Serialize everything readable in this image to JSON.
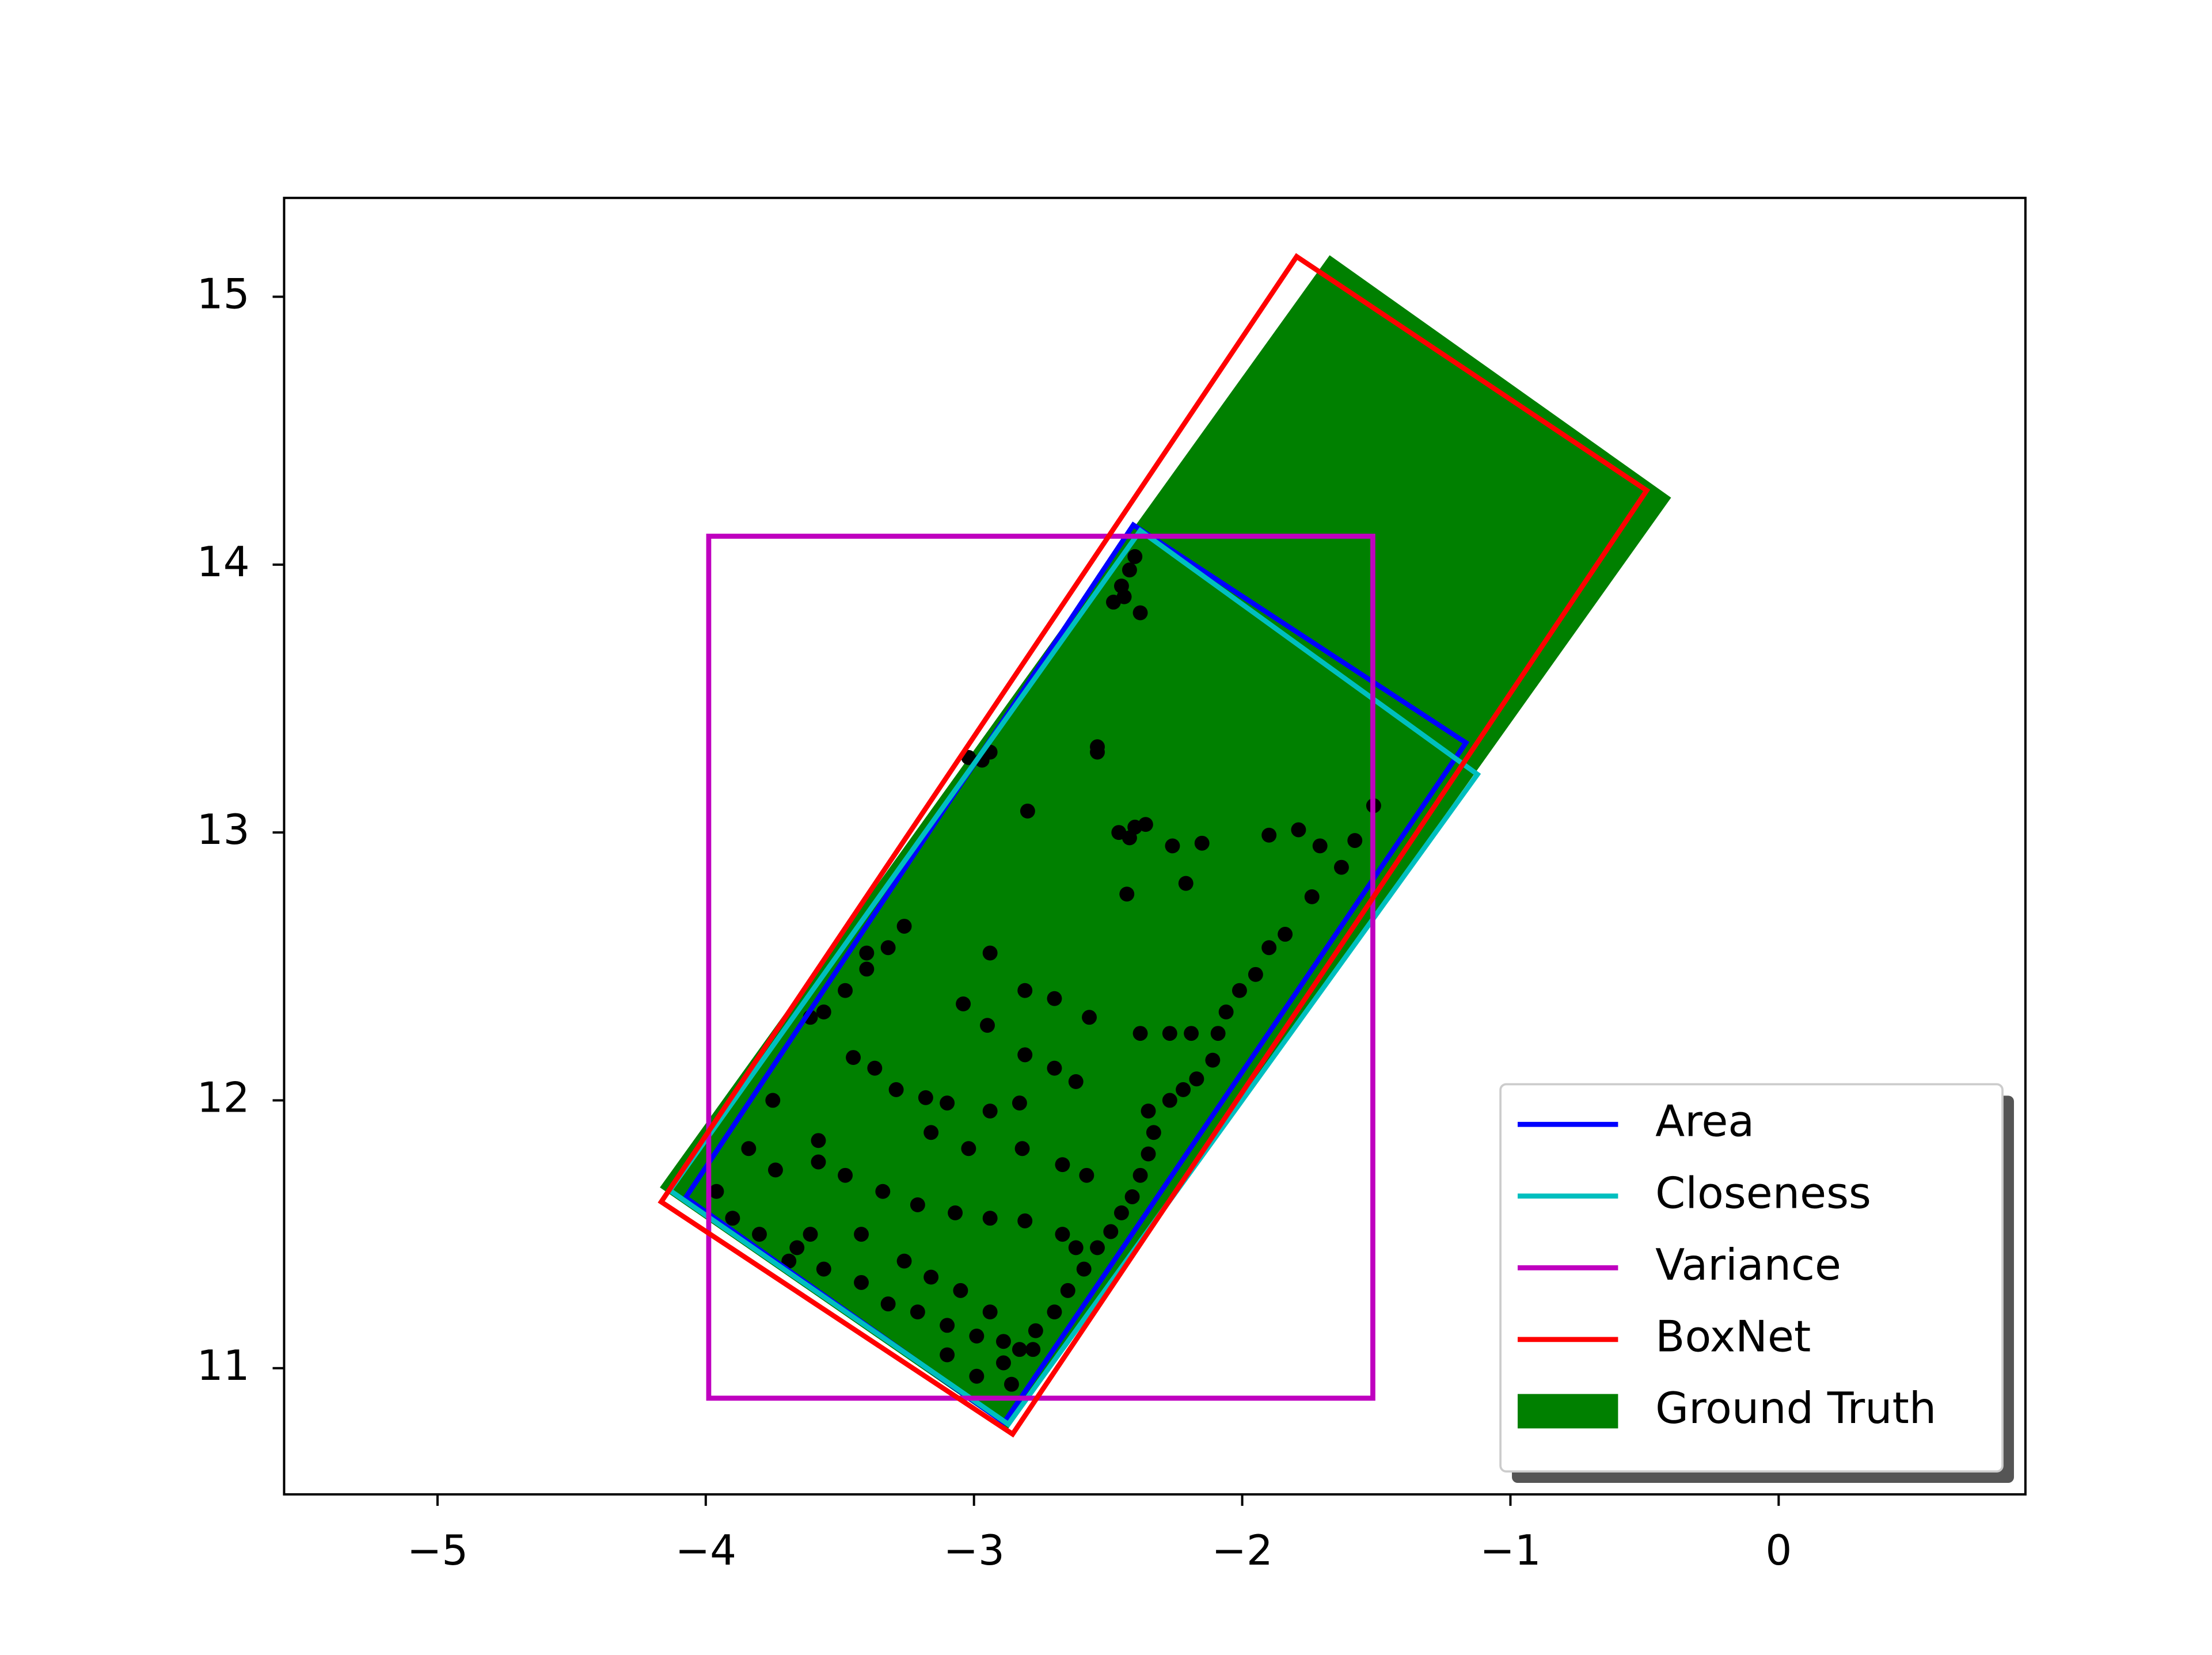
{
  "chart_data": {
    "type": "scatter",
    "xlim": [
      -5.572,
      0.92
    ],
    "ylim": [
      10.529,
      15.369
    ],
    "xticks": [
      {
        "value": -5,
        "label": "−5"
      },
      {
        "value": -4,
        "label": "−4"
      },
      {
        "value": -3,
        "label": "−3"
      },
      {
        "value": -2,
        "label": "−2"
      },
      {
        "value": -1,
        "label": "−1"
      },
      0
    ],
    "yticks": [
      11,
      12,
      13,
      14,
      15
    ],
    "legend": "lower right",
    "series": [
      {
        "name": "Area",
        "color": "#0000ff",
        "kind": "outline",
        "x": [
          -2.406,
          -1.166,
          -2.888,
          -4.075
        ],
        "y": [
          14.148,
          13.335,
          10.797,
          11.637
        ]
      },
      {
        "name": "Closeness",
        "color": "#00bfbf",
        "kind": "outline",
        "x": [
          -2.38,
          -1.123,
          -2.872,
          -4.134
        ],
        "y": [
          14.127,
          13.217,
          10.791,
          11.664
        ]
      },
      {
        "name": "Variance",
        "color": "#bf00bf",
        "kind": "outline",
        "x": [
          -3.989,
          -1.513,
          -1.513,
          -3.989
        ],
        "y": [
          14.106,
          14.106,
          10.888,
          10.888
        ]
      },
      {
        "name": "BoxNet",
        "color": "#ff0000",
        "kind": "outline",
        "x": [
          -1.797,
          -0.492,
          -2.856,
          -4.166
        ],
        "y": [
          15.15,
          14.277,
          10.754,
          11.621
        ]
      },
      {
        "name": "Ground Truth",
        "color": "#008000",
        "kind": "filled",
        "x": [
          -1.674,
          -0.401,
          -2.872,
          -4.171
        ],
        "y": [
          15.155,
          14.25,
          10.775,
          11.675
        ]
      }
    ],
    "points": {
      "color": "#000000",
      "x": [
        -2.4,
        -2.42,
        -2.45,
        -2.48,
        -2.38,
        -2.44,
        -2.54,
        -2.54,
        -2.94,
        -2.97,
        -3.02,
        -2.8,
        -2.46,
        -2.4,
        -2.36,
        -2.42,
        -2.26,
        -2.15,
        -2.21,
        -2.43,
        -1.9,
        -1.79,
        -1.71,
        -1.58,
        -1.51,
        -1.63,
        -1.74,
        -1.84,
        -1.9,
        -1.95,
        -2.01,
        -2.06,
        -2.09,
        -2.11,
        -2.17,
        -2.22,
        -2.27,
        -2.35,
        -2.33,
        -2.35,
        -2.38,
        -2.41,
        -2.45,
        -2.49,
        -2.54,
        -2.59,
        -2.65,
        -2.7,
        -2.77,
        -2.83,
        -2.89,
        -2.81,
        -2.7,
        -2.57,
        -2.38,
        -2.27,
        -2.19,
        -3.26,
        -3.32,
        -3.4,
        -3.48,
        -3.56,
        -3.61,
        -3.4,
        -3.45,
        -3.37,
        -3.29,
        -3.18,
        -3.1,
        -2.94,
        -2.83,
        -2.7,
        -2.62,
        -2.81,
        -2.95,
        -3.04,
        -2.94,
        -3.84,
        -3.74,
        -3.58,
        -3.48,
        -3.34,
        -3.21,
        -3.07,
        -3.16,
        -3.02,
        -2.82,
        -2.67,
        -2.58,
        -3.96,
        -3.9,
        -3.8,
        -3.66,
        -3.56,
        -3.42,
        -3.32,
        -3.21,
        -3.1,
        -2.99,
        -2.89,
        -2.78,
        -2.94,
        -2.81,
        -2.67,
        -2.62,
        -3.26,
        -3.16,
        -3.05,
        -2.94,
        -3.1,
        -2.99,
        -2.86,
        -3.75,
        -3.58,
        -3.61,
        -3.69,
        -3.42
      ],
      "y": [
        14.03,
        13.98,
        13.92,
        13.86,
        13.82,
        13.88,
        13.32,
        13.3,
        13.3,
        13.27,
        13.28,
        13.08,
        13.0,
        13.02,
        13.03,
        12.98,
        12.95,
        12.96,
        12.81,
        12.77,
        12.99,
        13.01,
        12.95,
        12.97,
        13.1,
        12.87,
        12.76,
        12.62,
        12.57,
        12.47,
        12.41,
        12.33,
        12.25,
        12.15,
        12.08,
        12.04,
        12.0,
        11.96,
        11.88,
        11.8,
        11.72,
        11.64,
        11.58,
        11.51,
        11.45,
        11.37,
        11.29,
        11.21,
        11.14,
        11.07,
        11.02,
        12.41,
        12.38,
        12.31,
        12.25,
        12.25,
        12.25,
        12.65,
        12.57,
        12.49,
        12.41,
        12.33,
        12.31,
        12.55,
        12.16,
        12.12,
        12.04,
        12.01,
        11.99,
        11.96,
        11.99,
        12.12,
        12.07,
        12.17,
        12.28,
        12.36,
        12.55,
        11.82,
        11.74,
        11.77,
        11.72,
        11.66,
        11.61,
        11.58,
        11.88,
        11.82,
        11.82,
        11.76,
        11.72,
        11.66,
        11.56,
        11.5,
        11.45,
        11.37,
        11.32,
        11.24,
        11.21,
        11.16,
        11.12,
        11.1,
        11.07,
        11.56,
        11.55,
        11.5,
        11.45,
        11.4,
        11.34,
        11.29,
        11.21,
        11.05,
        10.97,
        10.94,
        12.0,
        11.85,
        11.5,
        11.4,
        11.5
      ]
    }
  }
}
